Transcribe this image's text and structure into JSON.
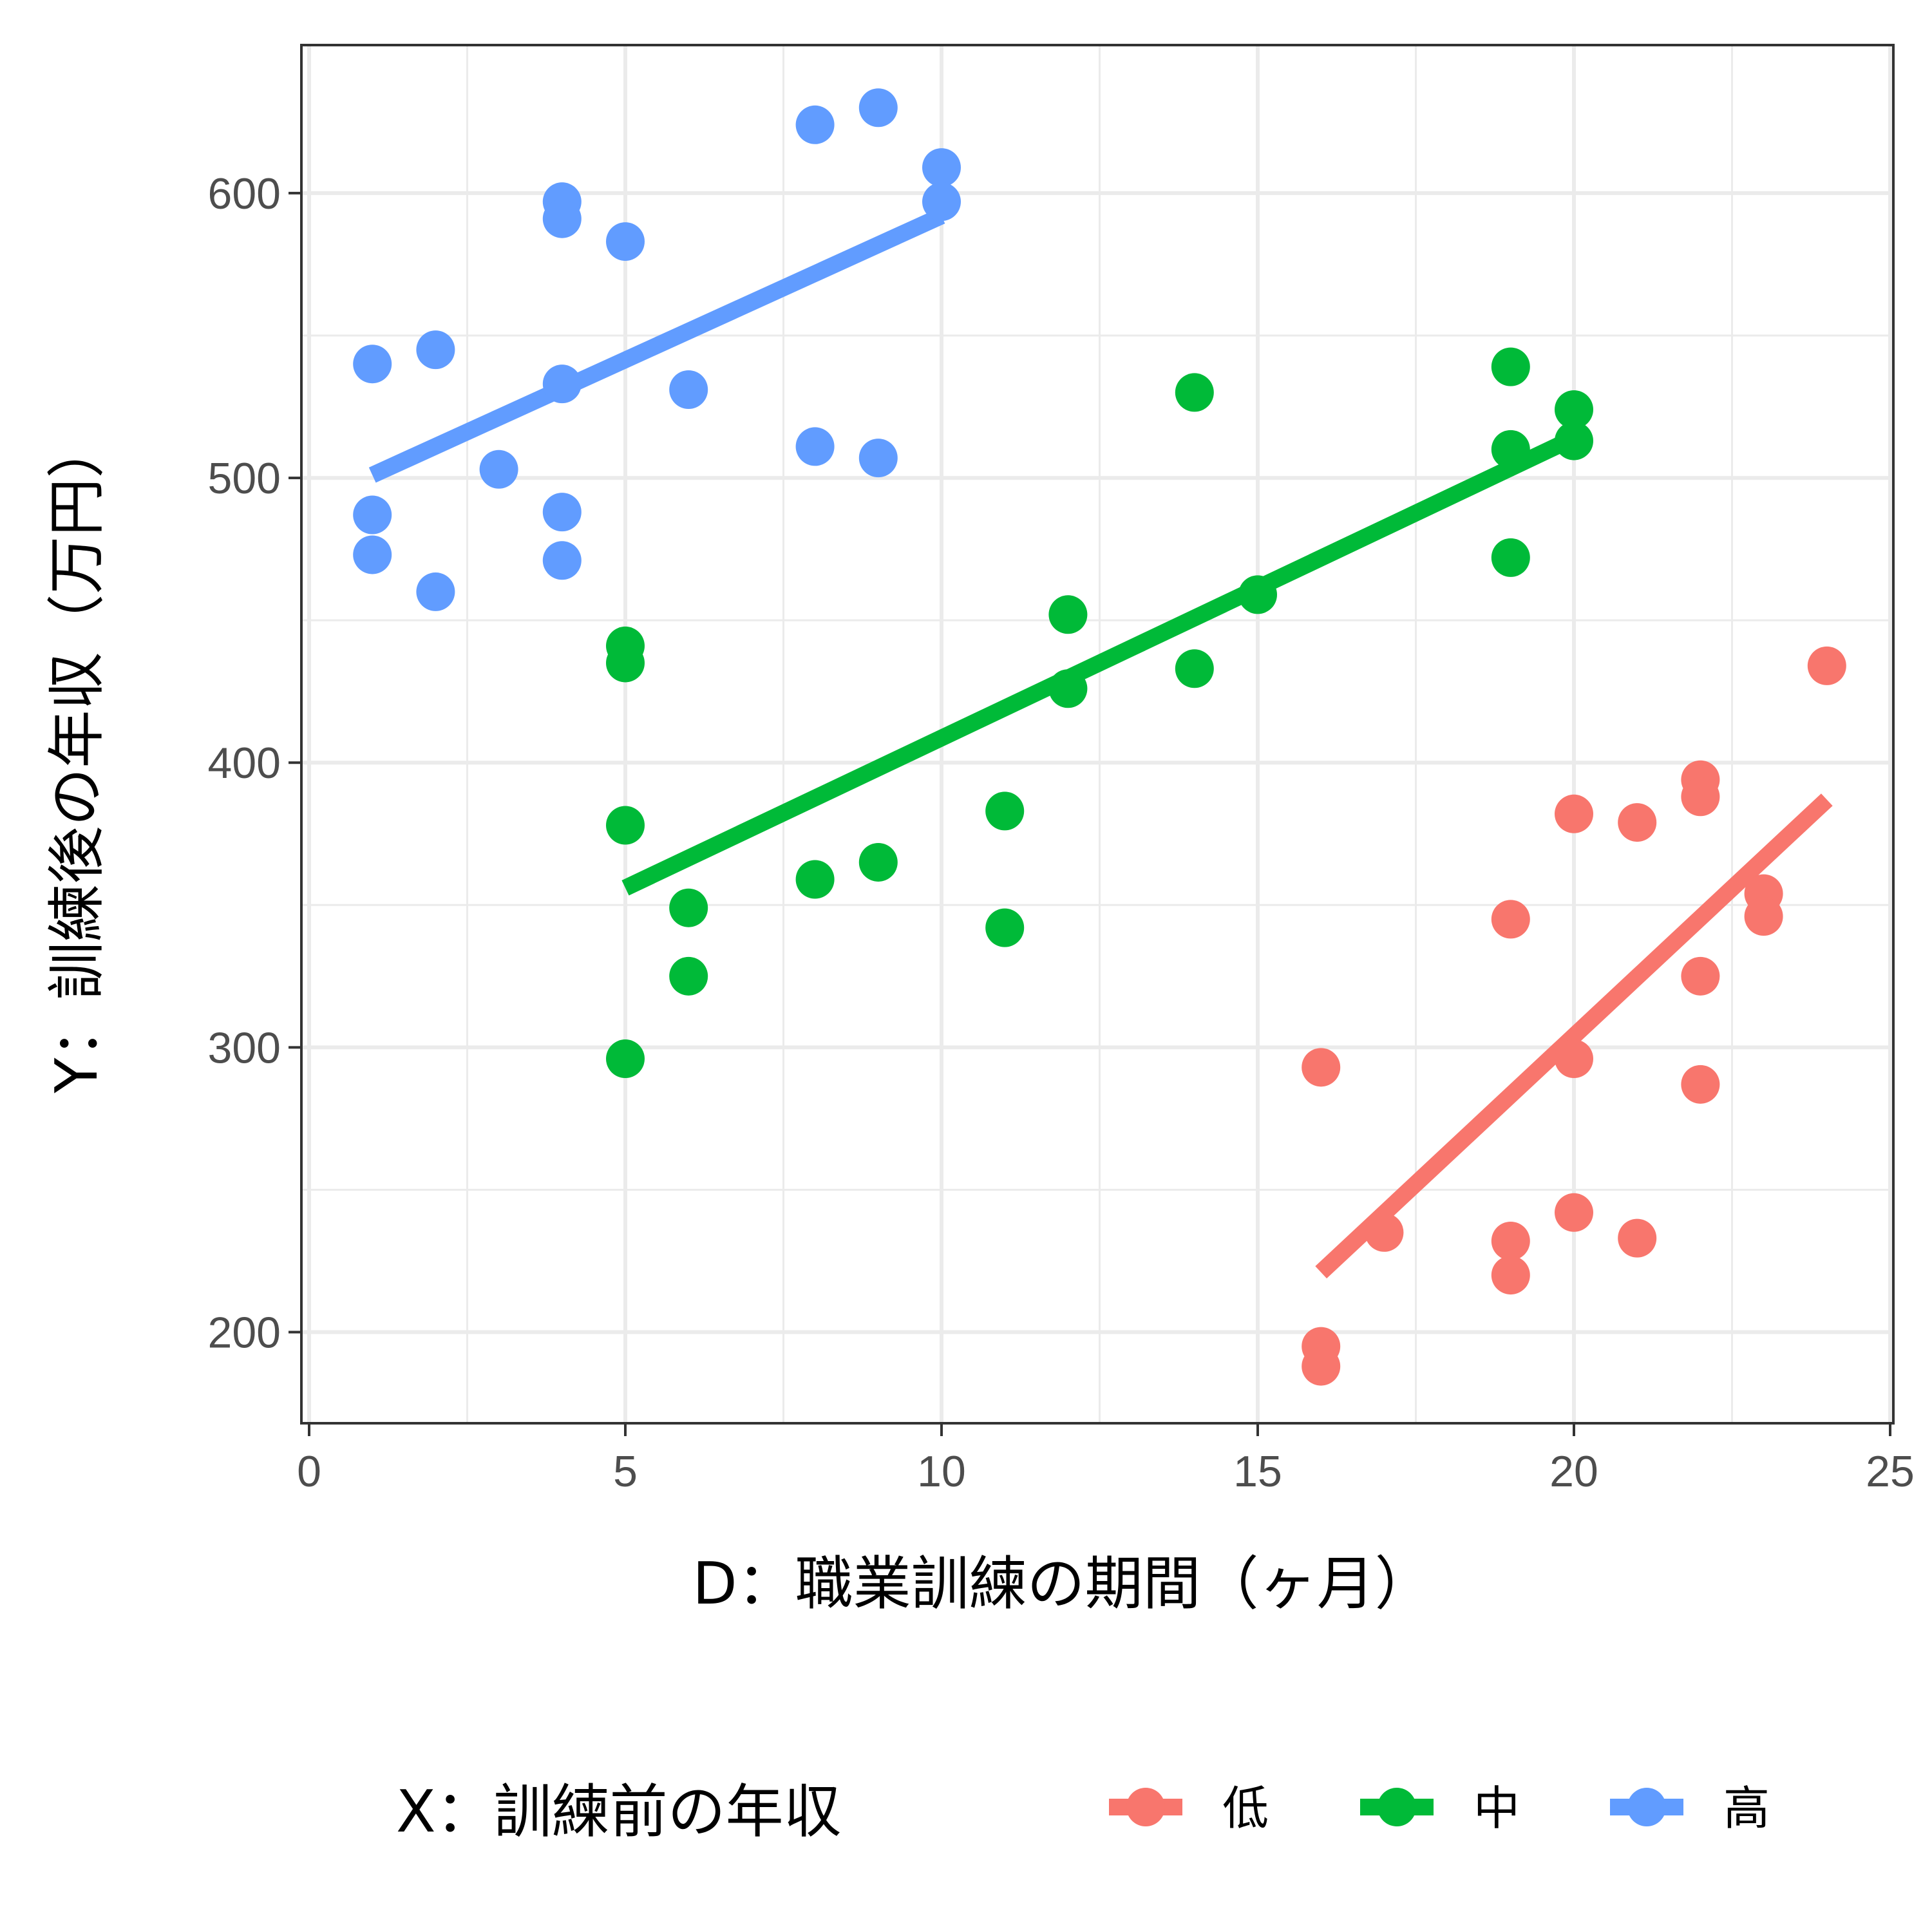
{
  "chart_data": {
    "type": "scatter",
    "xlabel": "D：職業訓練の期間（ヶ月）",
    "ylabel": "Y：訓練後の年収（万円）",
    "xlim": [
      0,
      25
    ],
    "ylim": [
      168,
      652
    ],
    "x_ticks": [
      0,
      5,
      10,
      15,
      20,
      25
    ],
    "y_ticks": [
      200,
      300,
      400,
      500,
      600
    ],
    "grid": true,
    "legend": {
      "title": "X：訓練前の年収",
      "position": "bottom"
    },
    "series": [
      {
        "name": "低",
        "color": "#F8766D",
        "points": [
          [
            16,
            293
          ],
          [
            16,
            195
          ],
          [
            16,
            188
          ],
          [
            17,
            235
          ],
          [
            19,
            345
          ],
          [
            19,
            232
          ],
          [
            19,
            220
          ],
          [
            20,
            382
          ],
          [
            20,
            296
          ],
          [
            20,
            242
          ],
          [
            21,
            379
          ],
          [
            21,
            233
          ],
          [
            22,
            394
          ],
          [
            22,
            388
          ],
          [
            22,
            325
          ],
          [
            22,
            287
          ],
          [
            23,
            354
          ],
          [
            23,
            346
          ],
          [
            24,
            434
          ]
        ],
        "fit": [
          [
            16,
            221
          ],
          [
            24,
            387
          ]
        ]
      },
      {
        "name": "中",
        "color": "#00BA38",
        "points": [
          [
            5,
            441
          ],
          [
            5,
            435
          ],
          [
            5,
            378
          ],
          [
            5,
            296
          ],
          [
            6,
            349
          ],
          [
            6,
            325
          ],
          [
            8,
            359
          ],
          [
            9,
            365
          ],
          [
            11,
            383
          ],
          [
            11,
            342
          ],
          [
            12,
            452
          ],
          [
            12,
            426
          ],
          [
            14,
            530
          ],
          [
            14,
            433
          ],
          [
            15,
            459
          ],
          [
            19,
            539
          ],
          [
            19,
            510
          ],
          [
            19,
            472
          ],
          [
            20,
            524
          ],
          [
            20,
            513
          ]
        ],
        "fit": [
          [
            5,
            356
          ],
          [
            20,
            514
          ]
        ]
      },
      {
        "name": "高",
        "color": "#619CFF",
        "points": [
          [
            1,
            540
          ],
          [
            1,
            487
          ],
          [
            1,
            473
          ],
          [
            2,
            545
          ],
          [
            2,
            460
          ],
          [
            3,
            503
          ],
          [
            4,
            597
          ],
          [
            4,
            591
          ],
          [
            4,
            533
          ],
          [
            4,
            488
          ],
          [
            4,
            471
          ],
          [
            5,
            583
          ],
          [
            6,
            531
          ],
          [
            8,
            624
          ],
          [
            8,
            511
          ],
          [
            9,
            630
          ],
          [
            9,
            507
          ],
          [
            10,
            609
          ],
          [
            10,
            597
          ]
        ],
        "fit": [
          [
            1,
            501
          ],
          [
            10,
            592
          ]
        ]
      }
    ]
  }
}
